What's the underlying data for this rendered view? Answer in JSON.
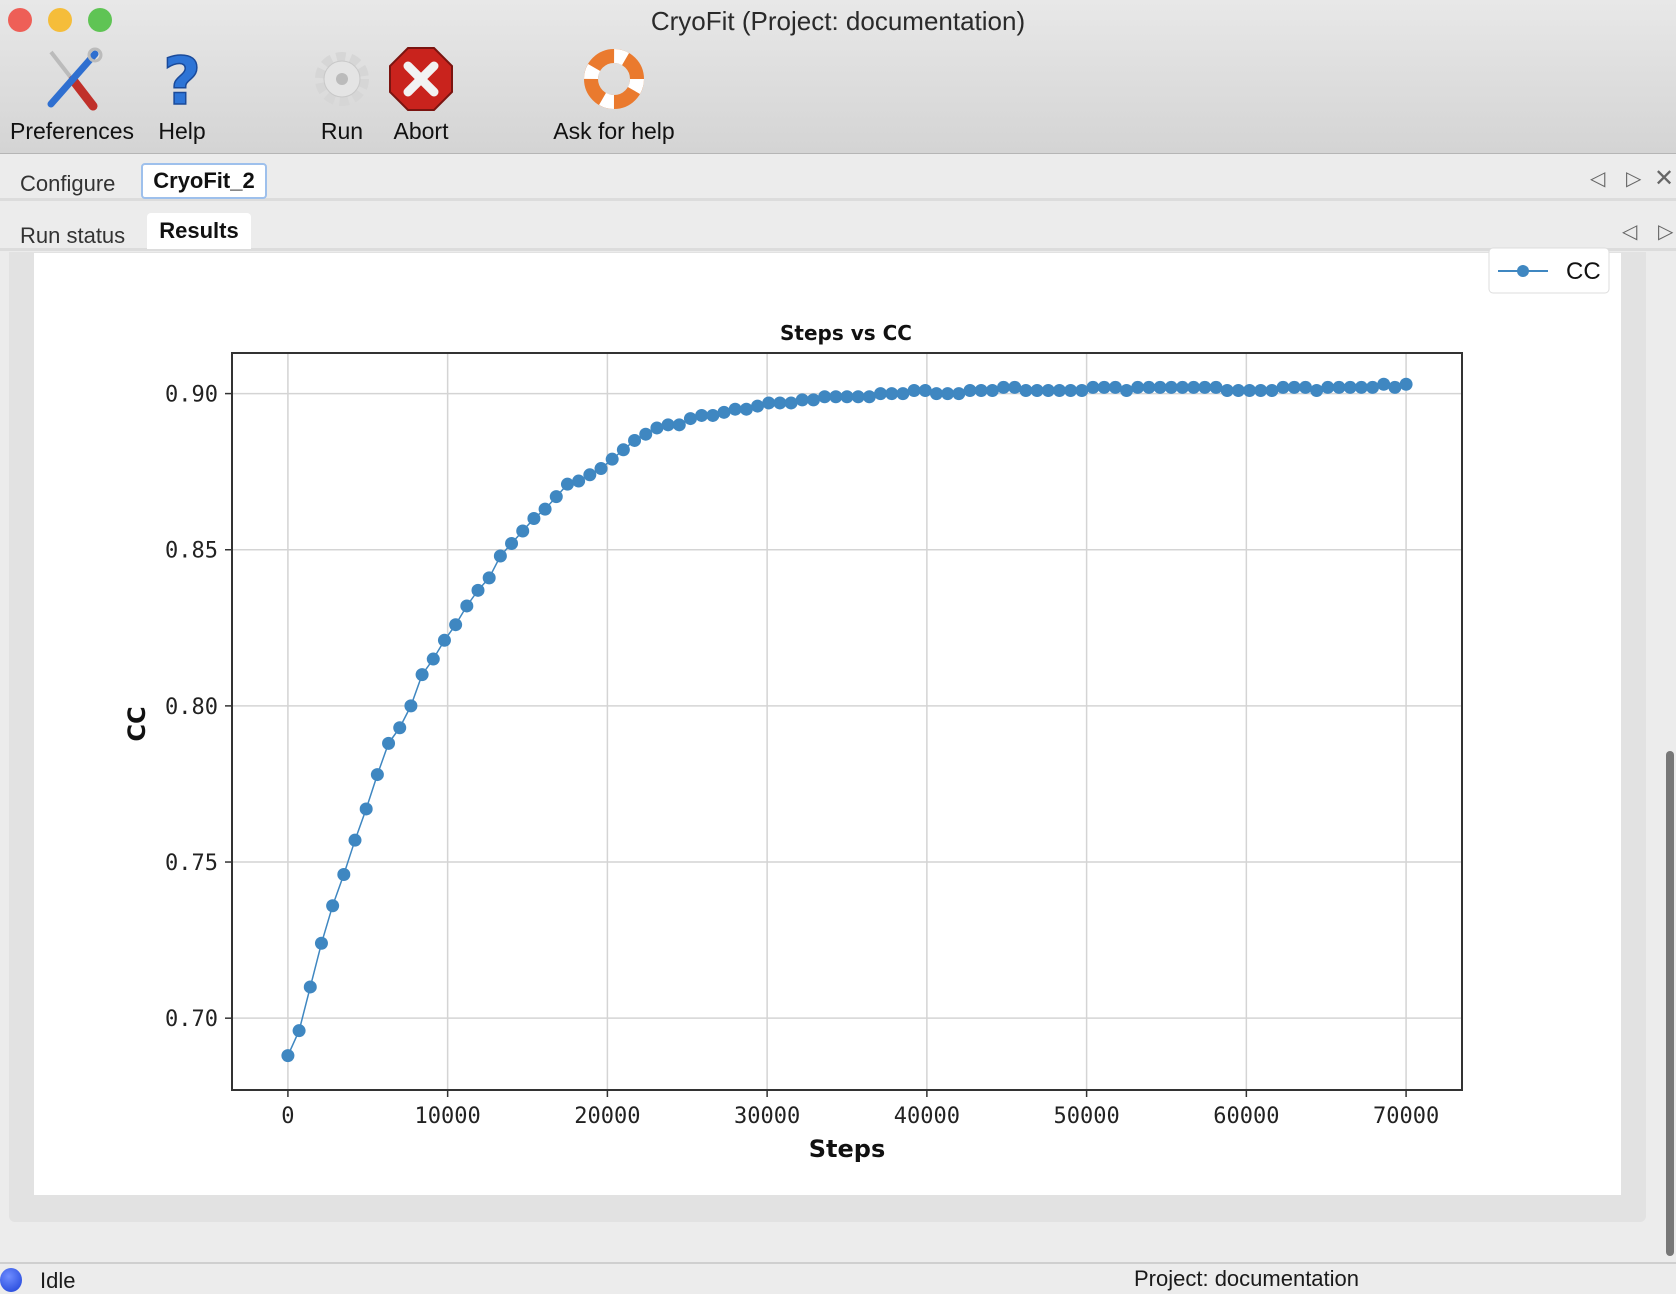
{
  "window": {
    "title": "CryoFit (Project: documentation)"
  },
  "toolbar": [
    {
      "label": "Preferences",
      "icon": "tools-icon"
    },
    {
      "label": "Help",
      "icon": "question-icon"
    },
    {
      "label": "Run",
      "icon": "gear-icon"
    },
    {
      "label": "Abort",
      "icon": "abort-icon"
    },
    {
      "label": "Ask for help",
      "icon": "lifebuoy-icon"
    }
  ],
  "tabs_top": [
    {
      "label": "Configure",
      "selected": false
    },
    {
      "label": "CryoFit_2",
      "selected": true
    }
  ],
  "tabs_sub": [
    {
      "label": "Run status",
      "selected": false
    },
    {
      "label": "Results",
      "selected": true
    }
  ],
  "status": {
    "state": "Idle",
    "project": "Project: documentation",
    "indicator_color": "#1a3fd6"
  },
  "chart_data": {
    "type": "line",
    "title": "Steps vs CC",
    "xlabel": "Steps",
    "ylabel": "CC",
    "xlim": [
      -3500,
      73500
    ],
    "ylim": [
      0.677,
      0.913
    ],
    "xticks": [
      0,
      10000,
      20000,
      30000,
      40000,
      50000,
      60000,
      70000
    ],
    "xtick_labels": [
      "0",
      "10000",
      "20000",
      "30000",
      "40000",
      "50000",
      "60000",
      "70000"
    ],
    "yticks": [
      0.7,
      0.75,
      0.8,
      0.85,
      0.9
    ],
    "ytick_labels": [
      "0.70",
      "0.75",
      "0.80",
      "0.85",
      "0.90"
    ],
    "grid": true,
    "legend": "top-right",
    "series": [
      {
        "name": "CC",
        "color": "#3f87c1",
        "marker": "circle",
        "x": [
          0,
          700,
          1400,
          2100,
          2800,
          3500,
          4200,
          4900,
          5600,
          6300,
          7000,
          7700,
          8400,
          9100,
          9800,
          10500,
          11200,
          11900,
          12600,
          13300,
          14000,
          14700,
          15400,
          16100,
          16800,
          17500,
          18200,
          18900,
          19600,
          20300,
          21000,
          21700,
          22400,
          23100,
          23800,
          24500,
          25200,
          25900,
          26600,
          27300,
          28000,
          28700,
          29400,
          30100,
          30800,
          31500,
          32200,
          32900,
          33600,
          34300,
          35000,
          35700,
          36400,
          37100,
          37800,
          38500,
          39200,
          39900,
          40600,
          41300,
          42000,
          42700,
          43400,
          44100,
          44800,
          45500,
          46200,
          46900,
          47600,
          48300,
          49000,
          49700,
          50400,
          51100,
          51800,
          52500,
          53200,
          53900,
          54600,
          55300,
          56000,
          56700,
          57400,
          58100,
          58800,
          59500,
          60200,
          60900,
          61600,
          62300,
          63000,
          63700,
          64400,
          65100,
          65800,
          66500,
          67200,
          67900,
          68600,
          69300,
          70000
        ],
        "y": [
          0.688,
          0.696,
          0.71,
          0.724,
          0.736,
          0.746,
          0.757,
          0.767,
          0.778,
          0.788,
          0.793,
          0.8,
          0.81,
          0.815,
          0.821,
          0.826,
          0.832,
          0.837,
          0.841,
          0.848,
          0.852,
          0.856,
          0.86,
          0.863,
          0.867,
          0.871,
          0.872,
          0.874,
          0.876,
          0.879,
          0.882,
          0.885,
          0.887,
          0.889,
          0.89,
          0.89,
          0.892,
          0.893,
          0.893,
          0.894,
          0.895,
          0.895,
          0.896,
          0.897,
          0.897,
          0.897,
          0.898,
          0.898,
          0.899,
          0.899,
          0.899,
          0.899,
          0.899,
          0.9,
          0.9,
          0.9,
          0.901,
          0.901,
          0.9,
          0.9,
          0.9,
          0.901,
          0.901,
          0.901,
          0.902,
          0.902,
          0.901,
          0.901,
          0.901,
          0.901,
          0.901,
          0.901,
          0.902,
          0.902,
          0.902,
          0.901,
          0.902,
          0.902,
          0.902,
          0.902,
          0.902,
          0.902,
          0.902,
          0.902,
          0.901,
          0.901,
          0.901,
          0.901,
          0.901,
          0.902,
          0.902,
          0.902,
          0.901,
          0.902,
          0.902,
          0.902,
          0.902,
          0.902,
          0.903,
          0.902,
          0.903
        ]
      }
    ]
  }
}
